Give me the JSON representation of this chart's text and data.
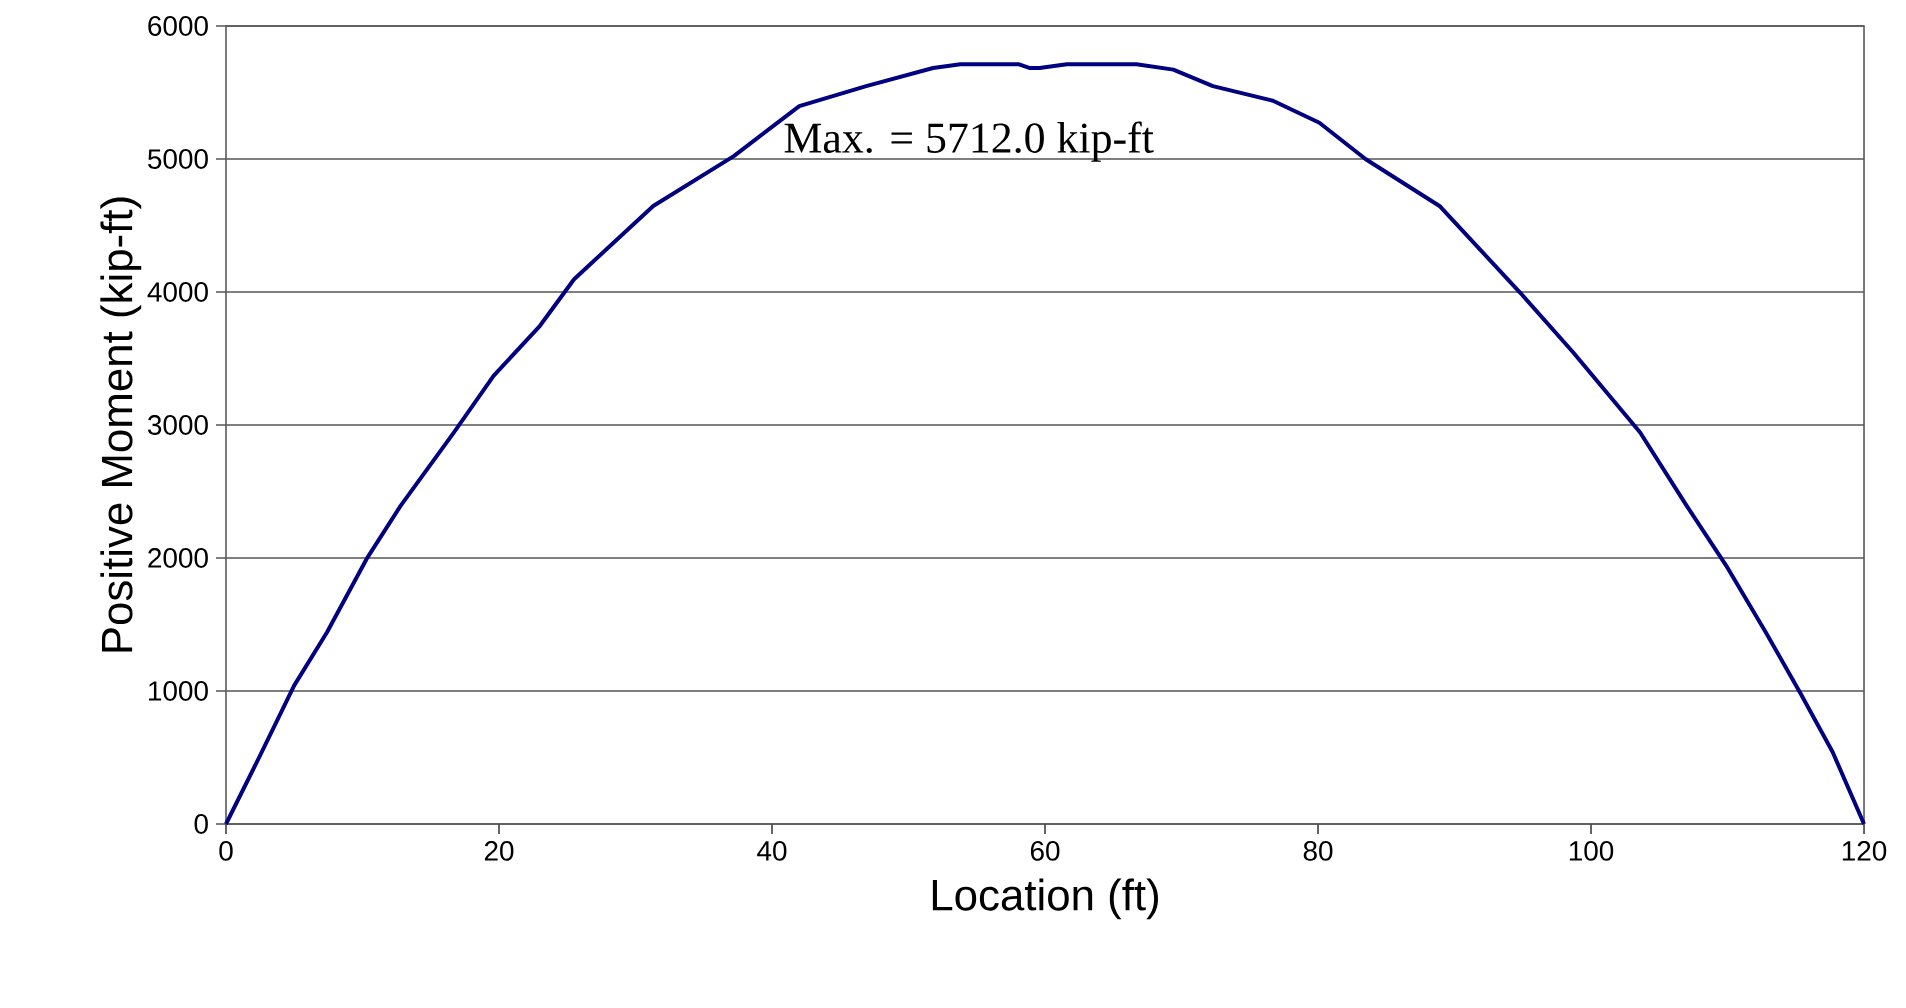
{
  "chart_data": {
    "type": "line",
    "xlabel": "Location (ft)",
    "ylabel": "Positive Moment (kip-ft)",
    "annotations": [
      "Max. = 5712.0 kip-ft"
    ],
    "xlim": [
      0,
      120
    ],
    "xticks": [
      0,
      20,
      40,
      60,
      80,
      100,
      120
    ],
    "ylim": [
      0,
      6000
    ],
    "yticks": [
      0,
      1000,
      2000,
      3000,
      4000,
      5000,
      6000
    ],
    "grid": "y",
    "marker": "none",
    "line_style": "solid",
    "series": [
      {
        "color": "#000080",
        "x": [
          0,
          2.5,
          5.0,
          7.4,
          10.3,
          12.8,
          16.7,
          19.6,
          23.0,
          25.5,
          31.3,
          37.2,
          42.0,
          46.9,
          51.8,
          53.8,
          58.1,
          58.9,
          59.6,
          61.6,
          66.7,
          69.4,
          72.3,
          76.7,
          80.1,
          83.5,
          88.9,
          94.8,
          98.7,
          103.6,
          107.0,
          109.9,
          112.8,
          115.3,
          117.7,
          120
        ],
        "values": [
          0,
          516,
          1042,
          1442,
          1993,
          2394,
          2945,
          3370,
          3746,
          4096,
          4647,
          5022,
          5398,
          5548,
          5684,
          5712,
          5712,
          5684,
          5684,
          5712,
          5712,
          5672,
          5548,
          5438,
          5273,
          4998,
          4647,
          3996,
          3545,
          2944,
          2394,
          1943,
          1442,
          991,
          541,
          0
        ]
      }
    ]
  }
}
